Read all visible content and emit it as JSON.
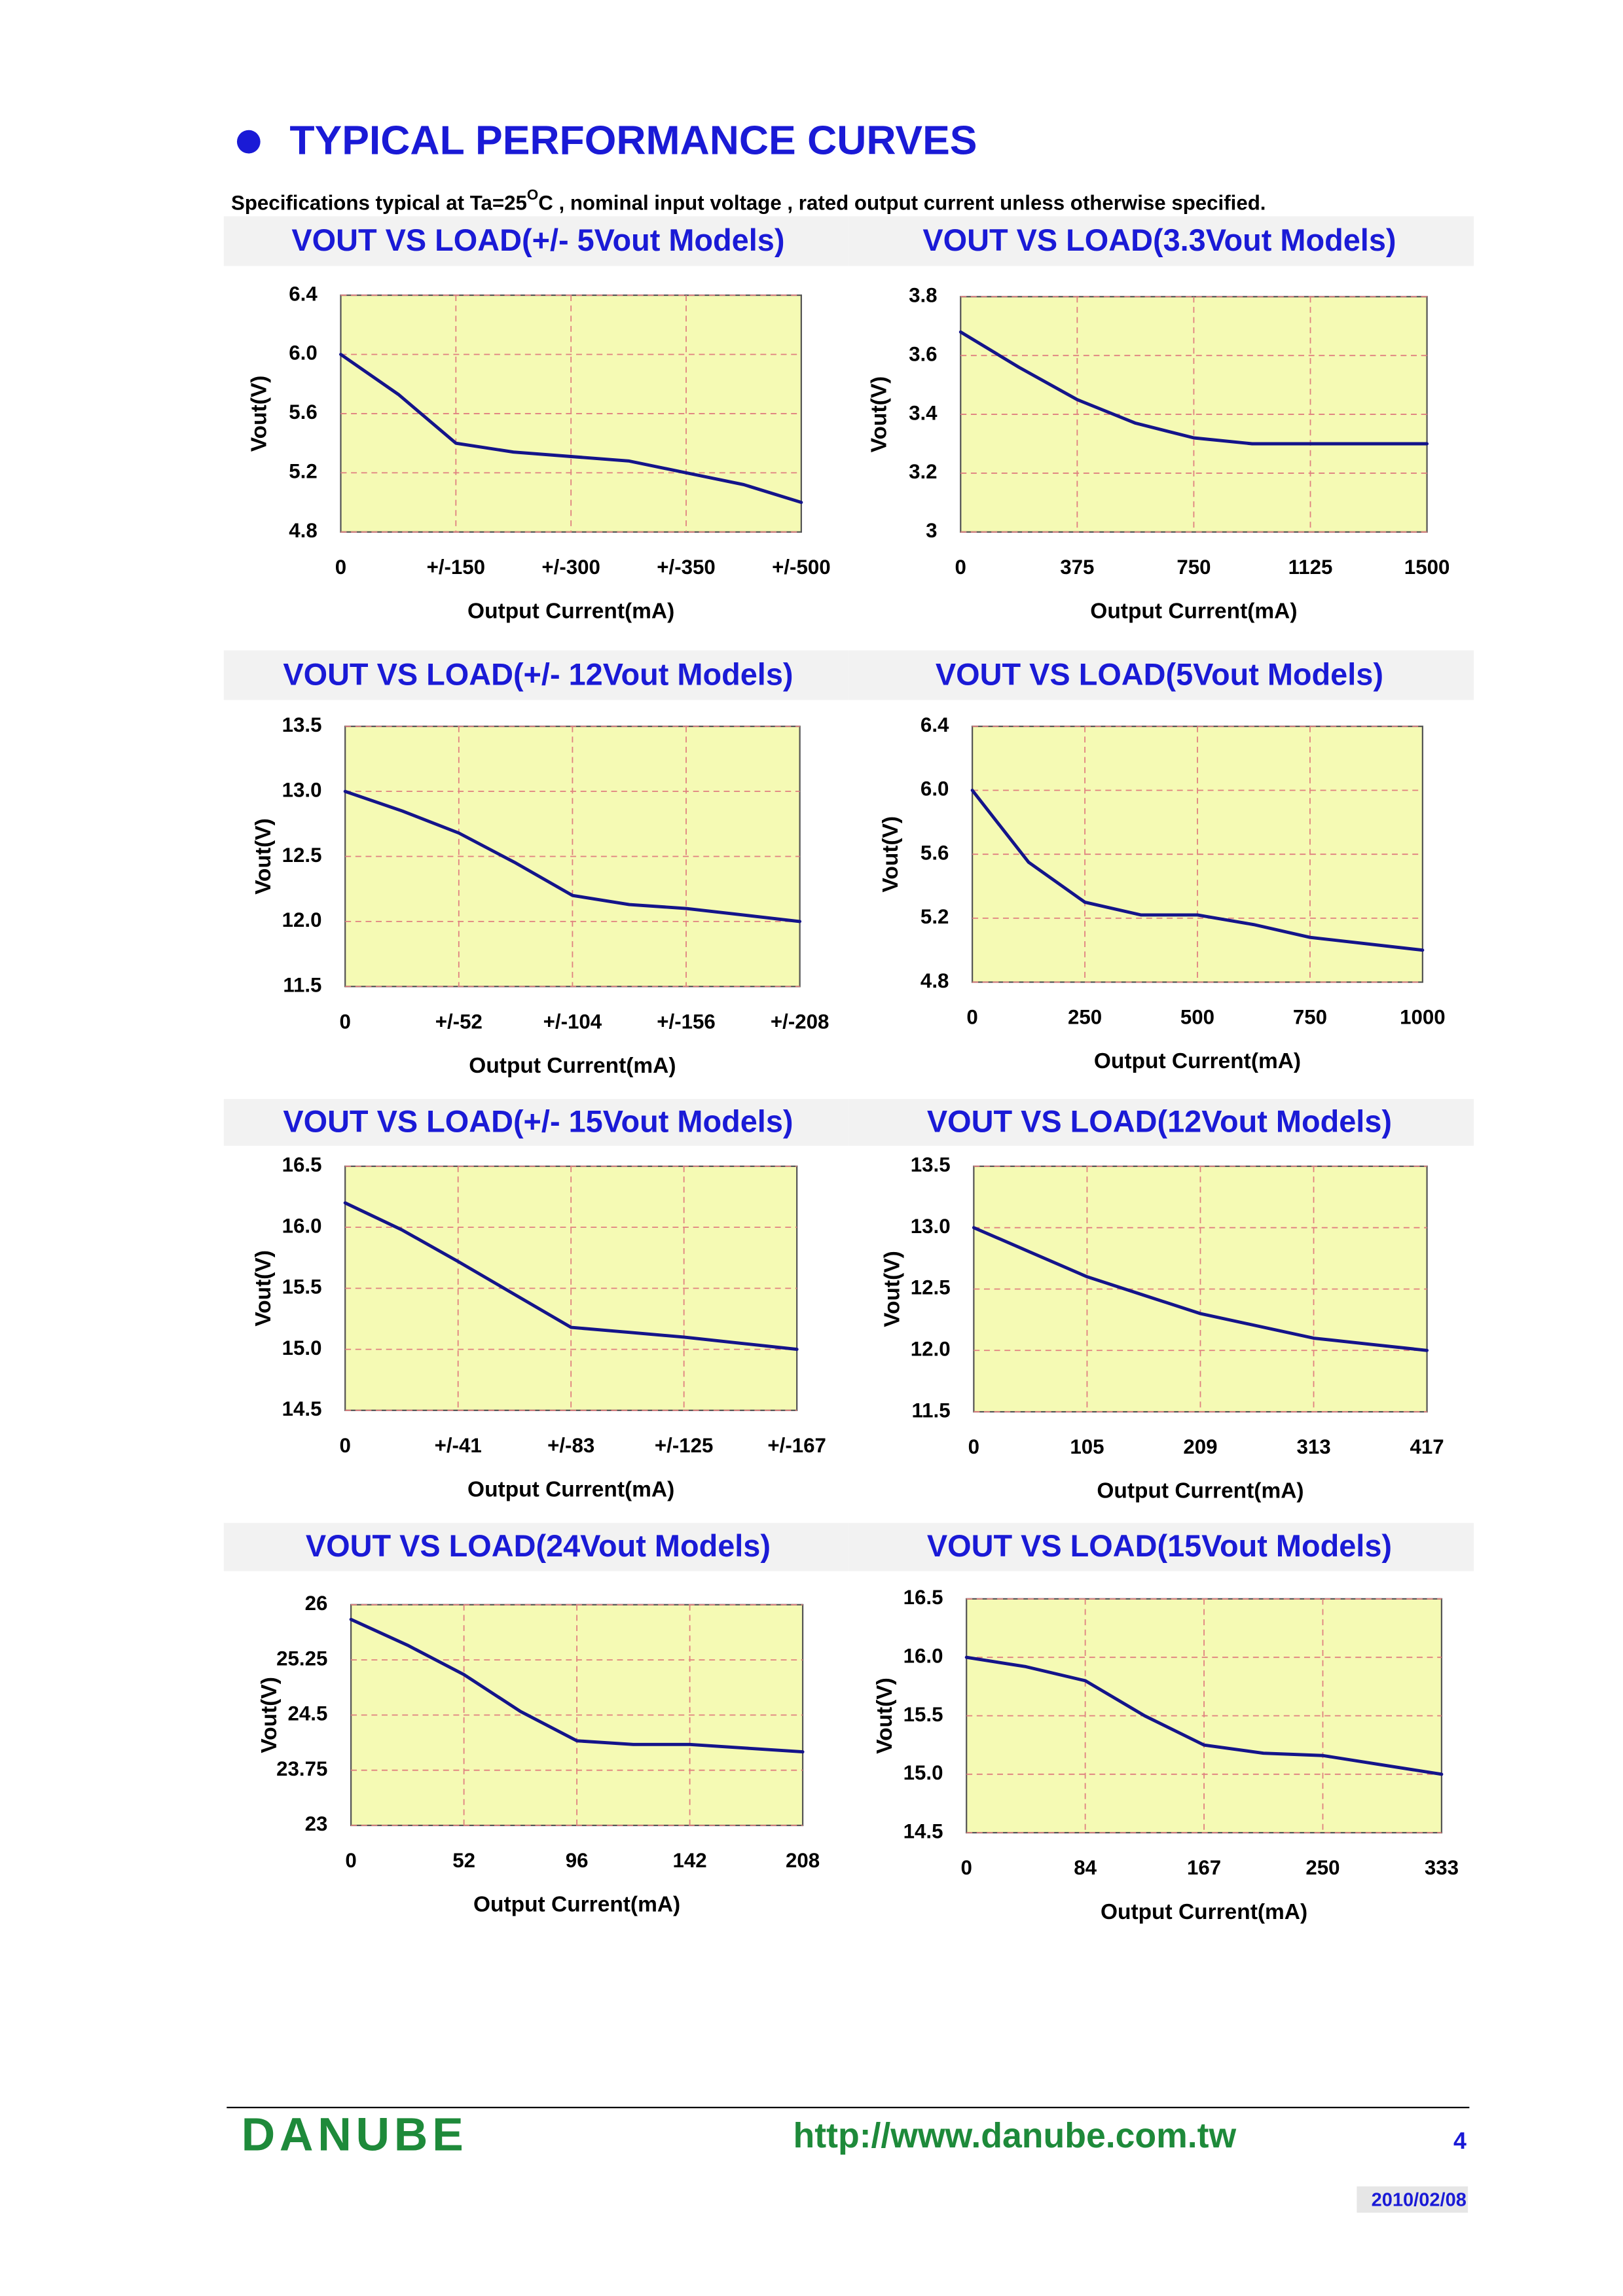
{
  "header": {
    "title": "TYPICAL PERFORMANCE CURVES",
    "subtitle": [
      "Specifications typical at Ta=25",
      "O",
      "C , nominal input voltage , rated output current unless otherwise specified."
    ]
  },
  "chart_data": [
    {
      "type": "line",
      "title": "VOUT VS LOAD(+/- 5Vout Models)",
      "xlabel": "Output Current(mA)",
      "ylabel": "Vout(V)",
      "categories": [
        "0",
        null,
        "+/-150",
        null,
        "+/-300",
        null,
        "+/-350",
        null,
        "+/-500"
      ],
      "values": [
        6.0,
        5.73,
        5.4,
        5.34,
        5.31,
        5.28,
        5.2,
        5.12,
        5.0
      ],
      "color": "#14148a",
      "ylim": [
        4.8,
        6.4
      ],
      "yticks": [
        4.8,
        5.2,
        5.6,
        {
          "value": 6,
          "label": "6.0"
        },
        6.4
      ],
      "grid": true
    },
    {
      "type": "line",
      "title": "VOUT VS LOAD(3.3Vout Models)",
      "xlabel": "Output Current(mA)",
      "ylabel": "Vout(V)",
      "categories": [
        "0",
        null,
        "375",
        null,
        "750",
        null,
        "1125",
        null,
        "1500"
      ],
      "values": [
        3.68,
        3.56,
        3.45,
        3.37,
        3.32,
        3.3,
        3.3,
        3.3,
        3.3
      ],
      "color": "#14148a",
      "ylim": [
        3,
        3.8
      ],
      "yticks": [
        3,
        3.2,
        3.4,
        3.6,
        3.8
      ],
      "grid": true
    },
    {
      "type": "line",
      "title": "VOUT VS LOAD(+/- 12Vout Models)",
      "xlabel": "Output Current(mA)",
      "ylabel": "Vout(V)",
      "categories": [
        "0",
        null,
        "+/-52",
        null,
        "+/-104",
        null,
        "+/-156",
        null,
        "+/-208"
      ],
      "values": [
        13.0,
        12.85,
        12.68,
        12.45,
        12.2,
        12.13,
        12.1,
        12.05,
        12.0
      ],
      "color": "#14148a",
      "ylim": [
        11.5,
        13.5
      ],
      "yticks": [
        11.5,
        {
          "value": 12,
          "label": "12.0"
        },
        12.5,
        {
          "value": 13,
          "label": "13.0"
        },
        13.5
      ],
      "grid": true
    },
    {
      "type": "line",
      "title": "VOUT VS LOAD(5Vout Models)",
      "xlabel": "Output Current(mA)",
      "ylabel": "Vout(V)",
      "categories": [
        "0",
        null,
        "250",
        null,
        "500",
        null,
        "750",
        null,
        "1000"
      ],
      "values": [
        6.0,
        5.55,
        5.3,
        5.22,
        5.22,
        5.16,
        5.08,
        5.04,
        5.0
      ],
      "color": "#14148a",
      "ylim": [
        4.8,
        6.4
      ],
      "yticks": [
        4.8,
        5.2,
        5.6,
        {
          "value": 6,
          "label": "6.0"
        },
        6.4
      ],
      "grid": true
    },
    {
      "type": "line",
      "title": "VOUT VS LOAD(+/- 15Vout Models)",
      "xlabel": "Output Current(mA)",
      "ylabel": "Vout(V)",
      "categories": [
        "0",
        null,
        "+/-41",
        null,
        "+/-83",
        null,
        "+/-125",
        null,
        "+/-167"
      ],
      "values": [
        16.2,
        15.98,
        15.72,
        15.45,
        15.18,
        15.14,
        15.1,
        15.05,
        15.0
      ],
      "color": "#14148a",
      "ylim": [
        14.5,
        16.5
      ],
      "yticks": [
        14.5,
        {
          "value": 15,
          "label": "15.0"
        },
        15.5,
        {
          "value": 16,
          "label": "16.0"
        },
        16.5
      ],
      "grid": true
    },
    {
      "type": "line",
      "title": "VOUT VS LOAD(12Vout Models)",
      "xlabel": "Output Current(mA)",
      "ylabel": "Vout(V)",
      "categories": [
        "0",
        null,
        "105",
        null,
        "209",
        null,
        "313",
        null,
        "417"
      ],
      "values": [
        13.0,
        12.8,
        12.6,
        12.45,
        12.3,
        12.2,
        12.1,
        12.05,
        12.0
      ],
      "color": "#14148a",
      "ylim": [
        11.5,
        13.5
      ],
      "yticks": [
        11.5,
        {
          "value": 12,
          "label": "12.0"
        },
        12.5,
        {
          "value": 13,
          "label": "13.0"
        },
        13.5
      ],
      "grid": true
    },
    {
      "type": "line",
      "title": "VOUT VS LOAD(24Vout Models)",
      "xlabel": "Output Current(mA)",
      "ylabel": "Vout(V)",
      "categories": [
        "0",
        null,
        "52",
        null,
        "96",
        null,
        "142",
        null,
        "208"
      ],
      "values": [
        25.8,
        25.45,
        25.05,
        24.55,
        24.15,
        24.1,
        24.1,
        24.05,
        24.0
      ],
      "color": "#14148a",
      "ylim": [
        23,
        26
      ],
      "yticks": [
        23,
        23.75,
        24.5,
        25.25,
        26
      ],
      "grid": true
    },
    {
      "type": "line",
      "title": "VOUT VS LOAD(15Vout Models)",
      "xlabel": "Output Current(mA)",
      "ylabel": "Vout(V)",
      "categories": [
        "0",
        null,
        "84",
        null,
        "167",
        null,
        "250",
        null,
        "333"
      ],
      "values": [
        16.0,
        15.92,
        15.8,
        15.5,
        15.25,
        15.18,
        15.16,
        15.08,
        15.0
      ],
      "color": "#14148a",
      "ylim": [
        14.5,
        16.5
      ],
      "yticks": [
        14.5,
        {
          "value": 15,
          "label": "15.0"
        },
        15.5,
        {
          "value": 16,
          "label": "16.0"
        },
        16.5
      ],
      "grid": true
    }
  ],
  "footer": {
    "brand": "DANUBE",
    "url": "http://www.danube.com.tw",
    "page": "4",
    "date": "2010/02/08"
  }
}
